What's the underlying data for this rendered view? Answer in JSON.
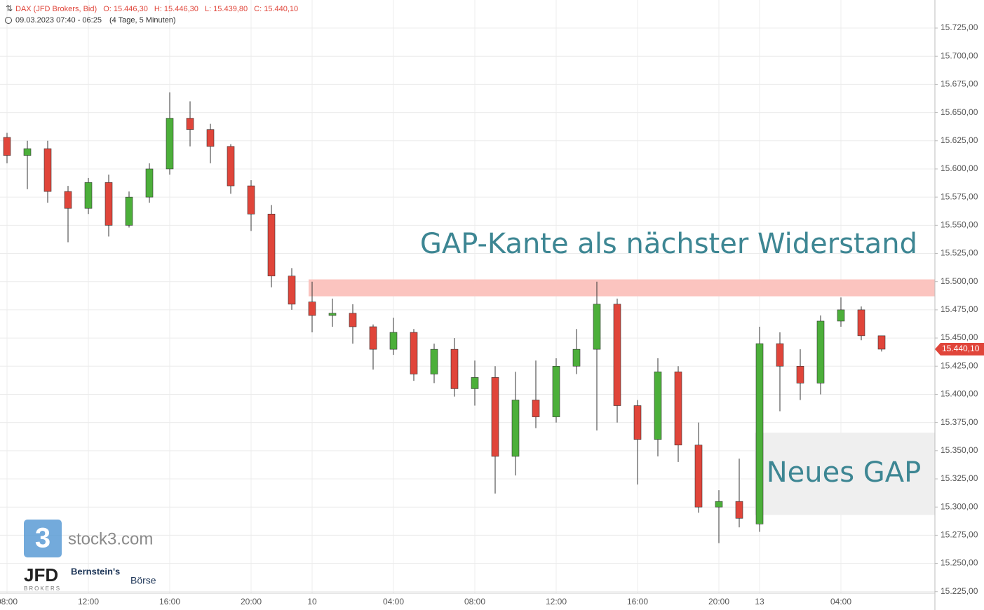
{
  "chart_data": {
    "type": "candlestick",
    "title": "DAX (JFD Brokers, Bid)",
    "ohlc_labels": [
      "O: 15.446,30",
      "H: 15.446,30",
      "L: 15.439,80",
      "C: 15.440,10"
    ],
    "subtitle": "09.03.2023 07:40 - 06:25",
    "interval": "(4 Tage, 5 Minuten)",
    "categories": [
      "08:00",
      null,
      null,
      null,
      "12:00",
      null,
      null,
      null,
      "16:00",
      null,
      null,
      null,
      "20:00",
      null,
      null,
      "10",
      null,
      null,
      null,
      "04:00",
      null,
      null,
      null,
      "08:00",
      null,
      null,
      null,
      "12:00",
      null,
      null,
      null,
      "16:00",
      null,
      null,
      null,
      "20:00",
      null,
      "13",
      null,
      null,
      null,
      "04:00",
      null,
      null
    ],
    "open": [
      15628,
      15612,
      15618,
      15580,
      15565,
      15588,
      15550,
      15575,
      15600,
      15645,
      15635,
      15620,
      15585,
      15560,
      15505,
      15482,
      15470,
      15472,
      15460,
      15440,
      15455,
      15418,
      15440,
      15405,
      15415,
      15345,
      15395,
      15380,
      15425,
      15440,
      15480,
      15390,
      15360,
      15420,
      15355,
      15300,
      15305,
      15285,
      15445,
      15425,
      15410,
      15465,
      15475,
      15452
    ],
    "high": [
      15632,
      15625,
      15625,
      15585,
      15592,
      15595,
      15580,
      15605,
      15668,
      15660,
      15640,
      15622,
      15590,
      15568,
      15512,
      15500,
      15485,
      15480,
      15462,
      15468,
      15458,
      15445,
      15450,
      15430,
      15425,
      15420,
      15430,
      15432,
      15458,
      15500,
      15485,
      15395,
      15432,
      15425,
      15375,
      15315,
      15343,
      15460,
      15455,
      15440,
      15470,
      15486,
      15478,
      15452
    ],
    "low": [
      15605,
      15582,
      15570,
      15535,
      15560,
      15540,
      15548,
      15570,
      15595,
      15620,
      15605,
      15578,
      15545,
      15495,
      15475,
      15455,
      15460,
      15445,
      15422,
      15435,
      15412,
      15410,
      15398,
      15390,
      15312,
      15328,
      15370,
      15375,
      15418,
      15368,
      15375,
      15320,
      15345,
      15340,
      15295,
      15268,
      15282,
      15278,
      15385,
      15395,
      15400,
      15460,
      15448,
      15438
    ],
    "close": [
      15612,
      15618,
      15580,
      15565,
      15588,
      15550,
      15575,
      15600,
      15645,
      15635,
      15620,
      15585,
      15560,
      15505,
      15480,
      15470,
      15472,
      15460,
      15440,
      15455,
      15418,
      15440,
      15405,
      15415,
      15345,
      15395,
      15380,
      15425,
      15440,
      15480,
      15390,
      15360,
      15420,
      15355,
      15300,
      15305,
      15290,
      15445,
      15425,
      15410,
      15465,
      15475,
      15452,
      15440.1
    ],
    "up_color": "#4caf3a",
    "down_color": "#e0453a",
    "ylim": [
      15223.6,
      15749.9
    ],
    "yticks": [
      {
        "value": 15725,
        "label": "15.725,00"
      },
      {
        "value": 15700,
        "label": "15.700,00"
      },
      {
        "value": 15675,
        "label": "15.675,00"
      },
      {
        "value": 15650,
        "label": "15.650,00"
      },
      {
        "value": 15625,
        "label": "15.625,00"
      },
      {
        "value": 15600,
        "label": "15.600,00"
      },
      {
        "value": 15575,
        "label": "15.575,00"
      },
      {
        "value": 15550,
        "label": "15.550,00"
      },
      {
        "value": 15525,
        "label": "15.525,00"
      },
      {
        "value": 15500,
        "label": "15.500,00"
      },
      {
        "value": 15475,
        "label": "15.475,00"
      },
      {
        "value": 15450,
        "label": "15.450,00"
      },
      {
        "value": 15425,
        "label": "15.425,00"
      },
      {
        "value": 15400,
        "label": "15.400,00"
      },
      {
        "value": 15375,
        "label": "15.375,00"
      },
      {
        "value": 15350,
        "label": "15.350,00"
      },
      {
        "value": 15325,
        "label": "15.325,00"
      },
      {
        "value": 15300,
        "label": "15.300,00"
      },
      {
        "value": 15275,
        "label": "15.275,00"
      },
      {
        "value": 15250,
        "label": "15.250,00"
      },
      {
        "value": 15225,
        "label": "15.225,00"
      }
    ],
    "grid": true,
    "last_price": {
      "value": 15440.1,
      "label": "15.440,10"
    },
    "annotations": [
      {
        "text": "GAP-Kante als nächster Widerstand",
        "zone": [
          15487,
          15502
        ],
        "color": "#fbc4bf"
      },
      {
        "text": "Neues GAP",
        "zone": [
          15293,
          15366
        ],
        "color": "#efefef"
      }
    ]
  },
  "logos": {
    "stock3": "stock3.com",
    "jfd": "JFD",
    "jfd_sub": "BROKERS",
    "bernstein": "Bernstein's",
    "boerse": "Börse"
  }
}
